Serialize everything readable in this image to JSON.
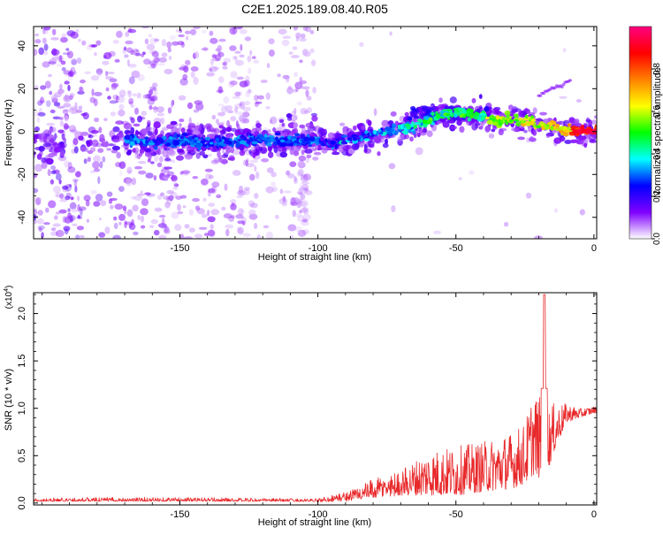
{
  "page": {
    "title": "C2E1.2025.189.08.40.R05"
  },
  "chart_data": [
    {
      "type": "heatmap",
      "title": "C2E1.2025.189.08.40.R05",
      "xlabel": "Height of straight line (km)",
      "ylabel": "Frequency (Hz)",
      "xlim": [
        -203,
        1
      ],
      "ylim": [
        -50,
        49
      ],
      "x_ticks": [
        -150,
        -100,
        -50,
        0
      ],
      "x_tick_labels": [
        "-150",
        "-100",
        "-50",
        "0"
      ],
      "y_ticks": [
        -40,
        -20,
        0,
        20,
        40
      ],
      "y_tick_labels": [
        "-40",
        "-20",
        "0",
        "20",
        "40"
      ],
      "colorbar": {
        "label": "Normalized spectral amplitude",
        "range": [
          0,
          1
        ],
        "ticks": [
          0,
          0.2,
          0.4,
          0.6,
          0.8
        ],
        "tick_labels": [
          "0.0",
          "0.2",
          "0.4",
          "0.6",
          "0.8"
        ],
        "colormap": [
          "#ffffff",
          "#7f00ff",
          "#0000ff",
          "#00ffff",
          "#00ff00",
          "#ffff00",
          "#ff8000",
          "#ff0000",
          "#ff0080"
        ]
      },
      "ridge": {
        "x": [
          -203,
          -190,
          -180,
          -170,
          -160,
          -150,
          -140,
          -130,
          -120,
          -110,
          -100,
          -95,
          -90,
          -85,
          -80,
          -75,
          -70,
          -65,
          -60,
          -55,
          -50,
          -45,
          -40,
          -35,
          -30,
          -25,
          -20,
          -15,
          -10,
          -5,
          0
        ],
        "y": [
          -5,
          -5,
          -4,
          -4,
          -5,
          -4,
          -5,
          -4,
          -4,
          -4,
          -4,
          -5,
          -4,
          -3,
          -1,
          0,
          2,
          3,
          5,
          8,
          9,
          8,
          7,
          5,
          6,
          5,
          3,
          2,
          1,
          0,
          0
        ]
      },
      "grid": false
    },
    {
      "type": "line",
      "xlabel": "Height of straight line (km)",
      "ylabel": "SNR (10 * v/v)",
      "y_multiplier_label": "(x10",
      "y_multiplier_exp": "4",
      "y_multiplier_close": ")",
      "xlim": [
        -203,
        1
      ],
      "ylim": [
        -0.02,
        2.22
      ],
      "x_ticks": [
        -150,
        -100,
        -50,
        0
      ],
      "x_tick_labels": [
        "-150",
        "-100",
        "-50",
        "0"
      ],
      "y_ticks": [
        0,
        0.5,
        1,
        1.5,
        2
      ],
      "y_tick_labels": [
        "0.0",
        "0.5",
        "1.0",
        "1.5",
        "2.0"
      ],
      "series": [
        {
          "color": "#e8282a",
          "envelope_x": [
            -203,
            -180,
            -150,
            -120,
            -100,
            -90,
            -80,
            -70,
            -60,
            -50,
            -40,
            -30,
            -25,
            -22,
            -19,
            -17,
            -15,
            -10,
            -5,
            0
          ],
          "envelope_low": [
            0.01,
            0.01,
            0.01,
            0.01,
            0.01,
            0.02,
            0.05,
            0.08,
            0.08,
            0.08,
            0.12,
            0.15,
            0.2,
            0.3,
            0.25,
            0.3,
            0.5,
            0.85,
            0.9,
            0.95
          ],
          "envelope_high": [
            0.06,
            0.07,
            0.07,
            0.06,
            0.05,
            0.12,
            0.25,
            0.35,
            0.55,
            0.6,
            0.65,
            0.75,
            0.85,
            1.2,
            1.1,
            1.0,
            1.05,
            1.05,
            1.0,
            1.02
          ],
          "peak": {
            "x": -18,
            "y": 2.2
          }
        }
      ],
      "grid": false
    }
  ]
}
